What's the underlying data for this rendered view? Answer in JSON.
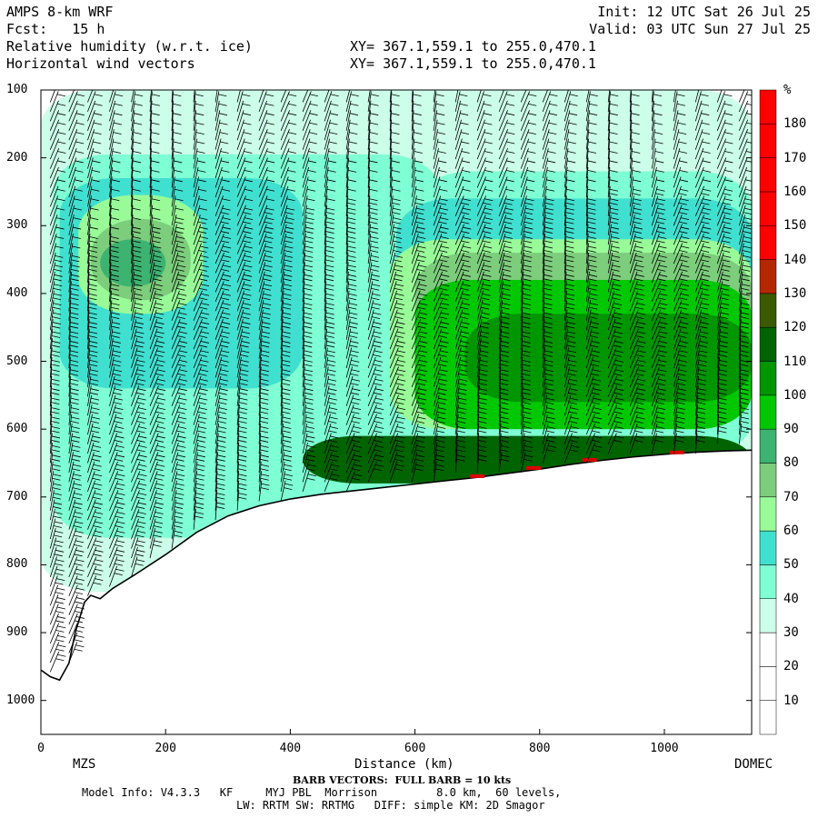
{
  "header": {
    "model": "AMPS 8-km WRF",
    "fcst": "Fcst:   15 h",
    "field1": "Relative humidity (w.r.t. ice)",
    "field2": "Horizontal wind vectors",
    "xy1": "XY= 367.1,559.1 to 255.0,470.1",
    "xy2": "XY= 367.1,559.1 to 255.0,470.1",
    "init": "Init: 12 UTC Sat 26 Jul 25",
    "valid": "Valid: 03 UTC Sun 27 Jul 25"
  },
  "colorbar": {
    "unit": "%",
    "levels": [
      "10",
      "20",
      "30",
      "40",
      "50",
      "60",
      "70",
      "80",
      "90",
      "100",
      "110",
      "120",
      "130",
      "140",
      "150",
      "160",
      "170",
      "180"
    ],
    "colors": [
      "#ffffff",
      "#ffffff",
      "#ffffff",
      "#ccffe9",
      "#7fffd4",
      "#40e0d0",
      "#98fb98",
      "#7ccd7c",
      "#3cb371",
      "#00c800",
      "#009600",
      "#006400",
      "#3c5a00",
      "#b42800",
      "#ff0000",
      "#ff0000",
      "#ff0000",
      "#ff0000",
      "#ff0000"
    ]
  },
  "chart_data": {
    "type": "heatmap",
    "xlabel": "Distance (km)",
    "ylabel": "",
    "x_ticks": [
      "0",
      "200",
      "400",
      "600",
      "800",
      "1000"
    ],
    "y_ticks": [
      "100",
      "200",
      "300",
      "400",
      "500",
      "600",
      "700",
      "800",
      "900",
      "1000"
    ],
    "xlim": [
      0,
      1140
    ],
    "ylim": [
      1050,
      100
    ],
    "start_label": "MZS",
    "end_label": "DOMEC",
    "terrain_pressure": [
      [
        0,
        955
      ],
      [
        15,
        965
      ],
      [
        30,
        970
      ],
      [
        45,
        945
      ],
      [
        55,
        900
      ],
      [
        70,
        855
      ],
      [
        80,
        845
      ],
      [
        95,
        850
      ],
      [
        115,
        835
      ],
      [
        150,
        815
      ],
      [
        200,
        785
      ],
      [
        250,
        752
      ],
      [
        300,
        728
      ],
      [
        350,
        713
      ],
      [
        400,
        703
      ],
      [
        450,
        696
      ],
      [
        500,
        691
      ],
      [
        550,
        686
      ],
      [
        600,
        681
      ],
      [
        650,
        676
      ],
      [
        700,
        671
      ],
      [
        750,
        665
      ],
      [
        800,
        659
      ],
      [
        850,
        652
      ],
      [
        900,
        646
      ],
      [
        950,
        641
      ],
      [
        1000,
        637
      ],
      [
        1050,
        634
      ],
      [
        1100,
        632
      ],
      [
        1140,
        631
      ]
    ],
    "rh_regions": [
      {
        "level": "30",
        "x": [
          0,
          1140
        ],
        "p": [
          100,
          840
        ]
      },
      {
        "level": "40",
        "x": [
          20,
          640
        ],
        "p": [
          195,
          760
        ]
      },
      {
        "level": "40",
        "x": [
          600,
          1140
        ],
        "p": [
          220,
          640
        ]
      },
      {
        "level": "50",
        "x": [
          30,
          420
        ],
        "p": [
          230,
          540
        ]
      },
      {
        "level": "50",
        "x": [
          570,
          1140
        ],
        "p": [
          260,
          600
        ]
      },
      {
        "level": "60",
        "x": [
          60,
          260
        ],
        "p": [
          255,
          430
        ]
      },
      {
        "level": "60",
        "x": [
          560,
          1140
        ],
        "p": [
          320,
          600
        ]
      },
      {
        "level": "70",
        "x": [
          80,
          240
        ],
        "p": [
          290,
          410
        ]
      },
      {
        "level": "70",
        "x": [
          600,
          1140
        ],
        "p": [
          340,
          600
        ]
      },
      {
        "level": "80",
        "x": [
          95,
          200
        ],
        "p": [
          320,
          390
        ]
      },
      {
        "level": "90",
        "x": [
          600,
          1140
        ],
        "p": [
          380,
          600
        ]
      },
      {
        "level": "100",
        "x": [
          680,
          1140
        ],
        "p": [
          430,
          560
        ]
      },
      {
        "level": "110",
        "x": [
          420,
          1140
        ],
        "p": [
          610,
          680
        ]
      }
    ],
    "barb_note": "BARB VECTORS:  FULL BARB = 10 kts",
    "barb_columns_km": [
      15,
      45,
      75,
      110,
      145,
      175,
      210,
      245,
      280,
      315,
      350,
      385,
      420,
      455,
      490,
      525,
      560,
      595,
      630,
      665,
      700,
      735,
      770,
      805,
      840,
      875,
      910,
      945,
      980,
      1015,
      1050,
      1085,
      1120
    ]
  },
  "footer": {
    "barb": "BARB VECTORS:  FULL BARB = 10 kts",
    "model_info": "Model Info: V4.3.3   KF     MYJ PBL  Morrison         8.0 km,  60 levels,",
    "physics": "LW: RRTM SW: RRTMG   DIFF: simple KM: 2D Smagor"
  }
}
